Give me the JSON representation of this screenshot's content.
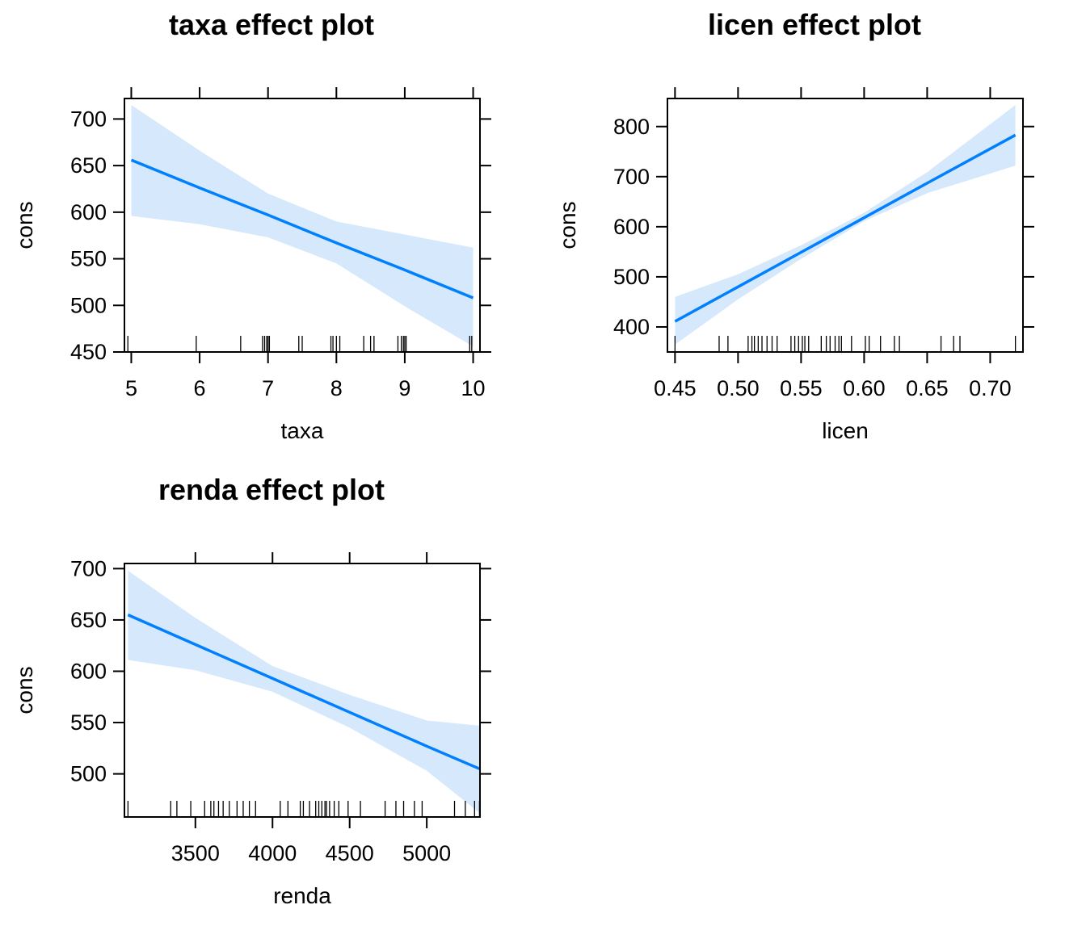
{
  "figure_title": "",
  "colors": {
    "line": "#0080ff",
    "band": "#d6e8fb",
    "axis": "#000000"
  },
  "chart_data": [
    {
      "type": "line",
      "title": "taxa effect plot",
      "xlabel": "taxa",
      "ylabel": "cons",
      "xlim": [
        4.9,
        10.1
      ],
      "ylim": [
        450,
        722
      ],
      "xticks": [
        5,
        6,
        7,
        8,
        9,
        10
      ],
      "yticks": [
        450,
        500,
        550,
        600,
        650,
        700
      ],
      "x": [
        5,
        6,
        7,
        8,
        9,
        10
      ],
      "y": [
        656,
        626,
        597,
        567,
        538,
        508
      ],
      "lower": [
        596,
        587,
        573,
        545,
        499,
        456
      ],
      "upper": [
        715,
        666,
        620,
        590,
        576,
        562
      ],
      "rug": [
        4.95,
        5.95,
        6.6,
        6.92,
        6.95,
        6.98,
        7.0,
        7.02,
        7.45,
        7.5,
        7.92,
        7.95,
        8.0,
        8.05,
        8.4,
        8.5,
        8.55,
        8.9,
        8.95,
        8.98,
        9.0,
        9.02,
        9.95,
        9.98
      ]
    },
    {
      "type": "line",
      "title": "licen effect plot",
      "xlabel": "licen",
      "ylabel": "cons",
      "xlim": [
        0.444,
        0.726
      ],
      "ylim": [
        350,
        856
      ],
      "xticks": [
        0.45,
        0.5,
        0.55,
        0.6,
        0.65,
        0.7
      ],
      "xtick_labels": [
        "0.45",
        "0.50",
        "0.55",
        "0.60",
        "0.65",
        "0.70"
      ],
      "yticks": [
        400,
        500,
        600,
        700,
        800
      ],
      "x": [
        0.45,
        0.5,
        0.55,
        0.6,
        0.65,
        0.72
      ],
      "y": [
        411,
        480,
        549,
        618,
        687,
        783
      ],
      "lower": [
        365,
        455,
        536,
        611,
        667,
        722
      ],
      "upper": [
        460,
        505,
        563,
        628,
        709,
        843
      ],
      "rug": [
        0.45,
        0.485,
        0.492,
        0.508,
        0.511,
        0.513,
        0.516,
        0.519,
        0.523,
        0.527,
        0.531,
        0.542,
        0.545,
        0.548,
        0.551,
        0.553,
        0.556,
        0.566,
        0.57,
        0.573,
        0.577,
        0.58,
        0.582,
        0.59,
        0.601,
        0.604,
        0.613,
        0.624,
        0.628,
        0.661,
        0.671,
        0.676,
        0.72
      ]
    },
    {
      "type": "line",
      "title": "renda effect plot",
      "xlabel": "renda",
      "ylabel": "cons",
      "xlim": [
        3040,
        5345
      ],
      "ylim": [
        458,
        705
      ],
      "xticks": [
        3500,
        4000,
        4500,
        5000
      ],
      "yticks": [
        500,
        550,
        600,
        650,
        700
      ],
      "x": [
        3063,
        3500,
        4000,
        4500,
        5000,
        5342
      ],
      "y": [
        655,
        626,
        593,
        560,
        527,
        505
      ],
      "lower": [
        611,
        601,
        580,
        545,
        503,
        462
      ],
      "upper": [
        698,
        652,
        605,
        577,
        552,
        547
      ],
      "rug": [
        3063,
        3340,
        3380,
        3470,
        3560,
        3600,
        3620,
        3650,
        3680,
        3720,
        3770,
        3810,
        3850,
        3890,
        4050,
        4100,
        4180,
        4200,
        4240,
        4280,
        4300,
        4320,
        4340,
        4350,
        4370,
        4400,
        4430,
        4490,
        4570,
        4730,
        4800,
        4850,
        4920,
        4970,
        5180,
        5250,
        5310,
        5342
      ]
    }
  ]
}
